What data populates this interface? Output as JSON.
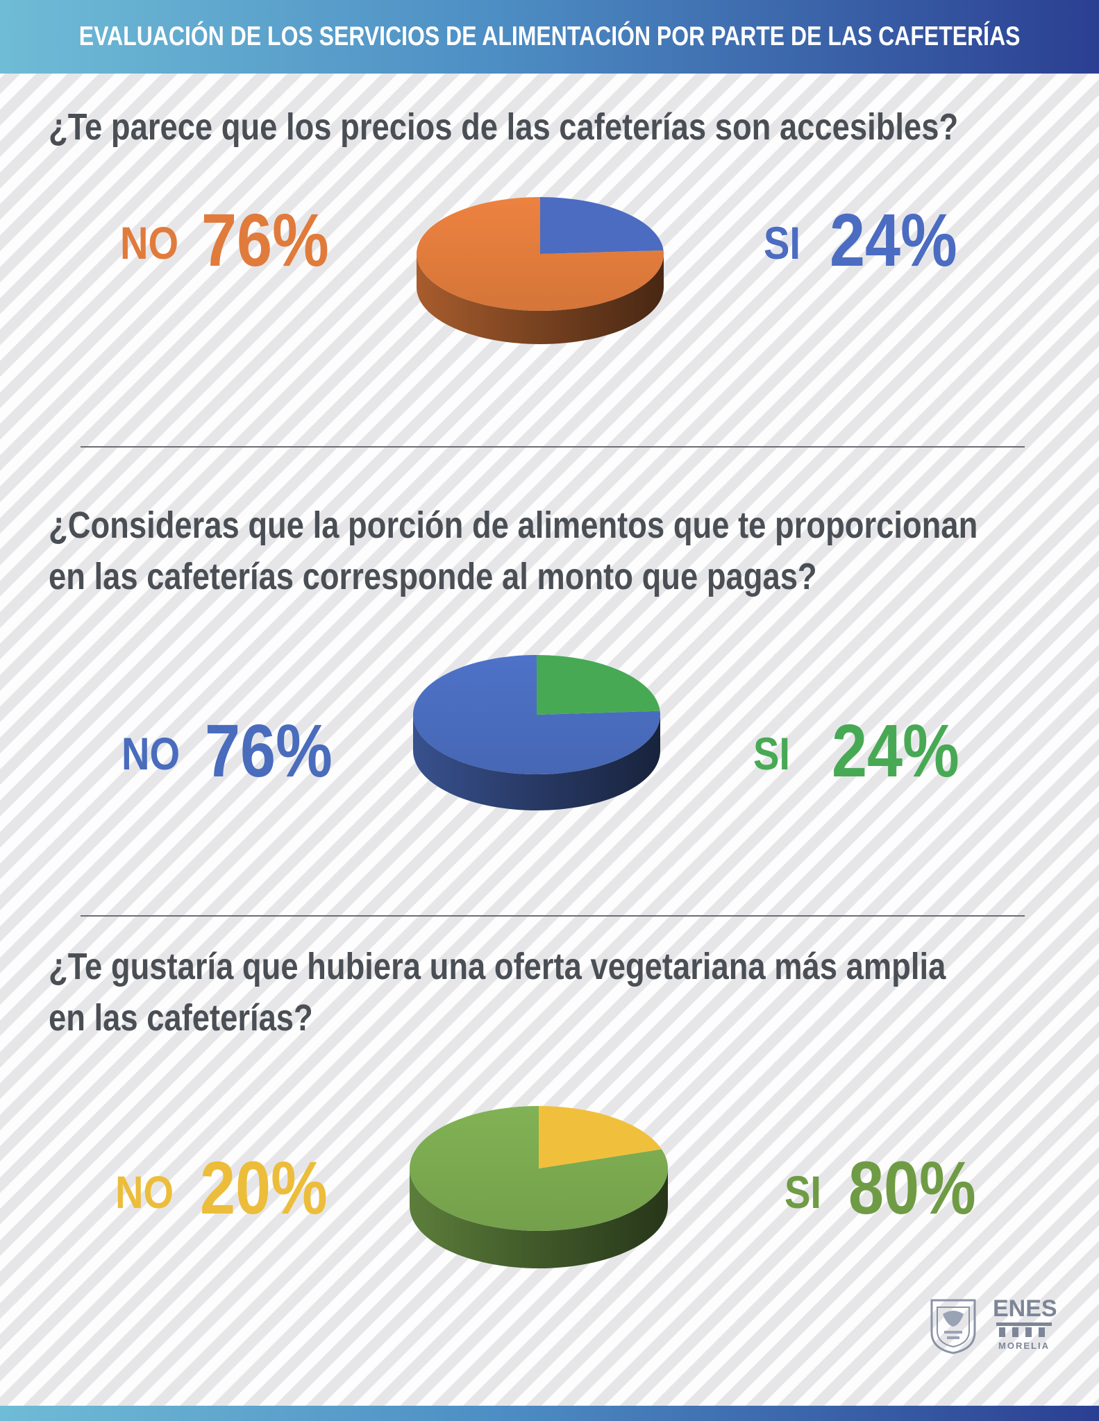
{
  "header": {
    "title": "EVALUACIÓN DE LOS SERVICIOS DE ALIMENTACIÓN POR PARTE DE LAS CAFETERÍAS"
  },
  "logo": {
    "name": "ENES",
    "subtitle": "MORELIA"
  },
  "chart_data": [
    {
      "type": "pie",
      "title": "¿Te parece que los precios de las cafeterías son accesibles?",
      "labels": [
        "NO",
        "SI"
      ],
      "values": [
        76,
        24
      ],
      "value_labels": [
        "76%",
        "24%"
      ],
      "colors": [
        "#e07b3c",
        "#4b6cc1"
      ]
    },
    {
      "type": "pie",
      "title": "¿Consideras que la porción de alimentos que te proporcionan en las cafeterías corresponde al monto que pagas?",
      "labels": [
        "NO",
        "SI"
      ],
      "values": [
        76,
        24
      ],
      "value_labels": [
        "76%",
        "24%"
      ],
      "colors": [
        "#4a6cbd",
        "#48a955"
      ]
    },
    {
      "type": "pie",
      "title": "¿Te gustaría que hubiera una oferta vegetariana más amplia en las cafeterías?",
      "labels": [
        "NO",
        "SI"
      ],
      "values": [
        20,
        80
      ],
      "value_labels": [
        "20%",
        "80%"
      ],
      "colors": [
        "#f0c03c",
        "#7aa84f"
      ]
    }
  ]
}
